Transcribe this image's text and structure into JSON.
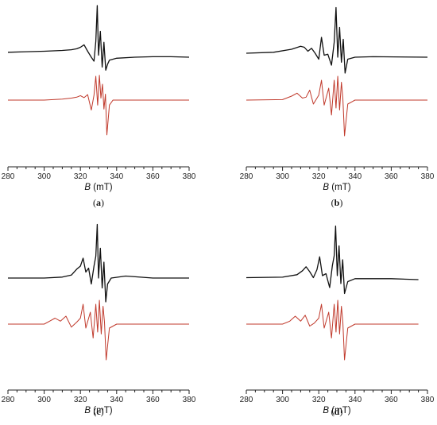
{
  "chart_data": [
    {
      "type": "line",
      "panel_label": "(a)",
      "xlabel_var": "B",
      "xlabel_unit": " (mT)",
      "xlim": [
        280,
        380
      ],
      "x_ticks": [
        280,
        300,
        320,
        340,
        360,
        380
      ],
      "grid": false,
      "series": [
        {
          "color": "#111111",
          "x": [
            280,
            290,
            300,
            310,
            315,
            318,
            320,
            322,
            324,
            326,
            327.5,
            328.5,
            329.3,
            330,
            331,
            332,
            333,
            334,
            335,
            336,
            340,
            350,
            360,
            370,
            380
          ],
          "y": [
            0.5,
            0.55,
            0.6,
            0.68,
            0.75,
            0.85,
            1.0,
            1.25,
            0.6,
            0.0,
            -0.4,
            1.6,
            5.2,
            0.2,
            2.6,
            -1.0,
            1.5,
            -1.3,
            -0.7,
            -0.3,
            -0.1,
            0.0,
            0.05,
            0.05,
            0.0
          ]
        },
        {
          "color": "#c0392b",
          "x": [
            280,
            300,
            310,
            315,
            318,
            320,
            322,
            324,
            326,
            327.5,
            328.5,
            329.5,
            330.5,
            331.3,
            332.2,
            333,
            333.8,
            334.6,
            336,
            338,
            345,
            380
          ],
          "y": [
            0,
            0.0,
            0.1,
            0.2,
            0.3,
            0.45,
            0.25,
            0.55,
            -1.0,
            0.5,
            2.4,
            -0.5,
            2.5,
            0.2,
            1.6,
            -0.9,
            0.6,
            -3.5,
            -0.5,
            0.0,
            0.0,
            0.0
          ]
        }
      ]
    },
    {
      "type": "line",
      "panel_label": "(b)",
      "xlabel_var": "B",
      "xlabel_unit": " (mT)",
      "xlim": [
        280,
        380
      ],
      "x_ticks": [
        280,
        300,
        320,
        340,
        360,
        380
      ],
      "grid": false,
      "series": [
        {
          "color": "#111111",
          "x": [
            280,
            295,
            305,
            310,
            312,
            314,
            316,
            318,
            320,
            321.5,
            323,
            325,
            327,
            328.5,
            329.5,
            330.5,
            331.5,
            332.5,
            333.5,
            334.5,
            336,
            340,
            350,
            380
          ],
          "y": [
            0.4,
            0.5,
            0.8,
            1.1,
            1.0,
            0.6,
            0.9,
            0.4,
            -0.2,
            2.0,
            0.2,
            0.3,
            -0.8,
            1.5,
            5.0,
            0.0,
            3.0,
            -0.5,
            1.8,
            -1.6,
            -0.2,
            0.0,
            0.05,
            0.0
          ]
        },
        {
          "color": "#c0392b",
          "x": [
            280,
            300,
            305,
            308,
            311,
            313,
            315,
            317,
            320,
            321.5,
            323,
            325.5,
            327,
            328.5,
            329.5,
            330.5,
            331.5,
            332.5,
            333.3,
            334.2,
            336,
            340,
            380
          ],
          "y": [
            0,
            0.05,
            0.4,
            0.7,
            0.2,
            0.3,
            1.0,
            -0.4,
            0.5,
            2.0,
            -0.5,
            1.2,
            -1.5,
            2.0,
            -0.8,
            2.4,
            -1.0,
            1.8,
            0.2,
            -3.6,
            -0.4,
            0.0,
            0.0
          ]
        }
      ]
    },
    {
      "type": "line",
      "panel_label": "(c)",
      "xlabel_var": "B",
      "xlabel_unit": " (mT)",
      "xlim": [
        280,
        380
      ],
      "x_ticks": [
        280,
        300,
        320,
        340,
        360,
        380
      ],
      "grid": false,
      "series": [
        {
          "color": "#111111",
          "x": [
            280,
            300,
            310,
            315,
            318,
            320,
            321.5,
            323,
            324.5,
            326,
            327.5,
            328.5,
            329.3,
            330,
            331,
            332,
            333,
            334,
            335,
            337,
            345,
            360,
            380
          ],
          "y": [
            0.0,
            0.0,
            0.1,
            0.3,
            0.9,
            1.2,
            2.0,
            0.6,
            1.0,
            -0.6,
            1.2,
            2.2,
            5.4,
            0.0,
            3.0,
            -1.0,
            1.6,
            -2.4,
            -0.6,
            0.0,
            0.2,
            0.0,
            0.0
          ]
        },
        {
          "color": "#c0392b",
          "x": [
            280,
            300,
            303,
            306,
            309,
            312,
            315,
            318,
            320,
            321.5,
            323,
            325.5,
            327,
            328.5,
            329.5,
            330.5,
            331.5,
            332.5,
            333.3,
            334.2,
            336,
            340,
            380
          ],
          "y": [
            0,
            0.0,
            0.3,
            0.6,
            0.3,
            0.8,
            -0.3,
            0.2,
            0.6,
            2.0,
            -0.4,
            1.2,
            -1.4,
            2.0,
            -0.8,
            2.4,
            -1.0,
            1.8,
            0.2,
            -3.6,
            -0.4,
            0.0,
            0.0
          ]
        }
      ]
    },
    {
      "type": "line",
      "panel_label": "(d)",
      "xlabel_var": "B",
      "xlabel_unit": " (mT)",
      "xlim": [
        280,
        380
      ],
      "x_ticks": [
        280,
        300,
        320,
        340,
        360,
        380
      ],
      "grid": false,
      "series": [
        {
          "color": "#111111",
          "x": [
            280,
            300,
            308,
            311,
            313,
            315,
            317,
            319,
            320.5,
            322,
            324,
            326,
            327.5,
            328.5,
            329.3,
            330.2,
            331.2,
            332.2,
            333.2,
            334.2,
            336,
            340,
            360,
            375
          ],
          "y": [
            0.2,
            0.25,
            0.5,
            0.9,
            1.3,
            0.8,
            0.2,
            1.0,
            2.3,
            0.4,
            0.6,
            -0.8,
            1.4,
            2.4,
            5.4,
            0.4,
            3.4,
            -0.4,
            2.0,
            -1.4,
            -0.2,
            0.1,
            0.1,
            0.0
          ]
        },
        {
          "color": "#c0392b",
          "x": [
            280,
            300,
            304,
            307,
            310,
            312.5,
            315,
            317.5,
            320,
            321.5,
            323,
            325.5,
            327,
            328.5,
            329.5,
            330.5,
            331.5,
            332.5,
            333.3,
            334.2,
            336,
            340,
            375
          ],
          "y": [
            0,
            0.0,
            0.3,
            0.8,
            0.3,
            0.9,
            -0.2,
            0.1,
            0.6,
            2.0,
            -0.4,
            1.2,
            -1.4,
            2.0,
            -0.8,
            2.4,
            -1.0,
            1.8,
            0.2,
            -3.6,
            -0.4,
            0.0,
            0.0
          ]
        }
      ]
    }
  ]
}
